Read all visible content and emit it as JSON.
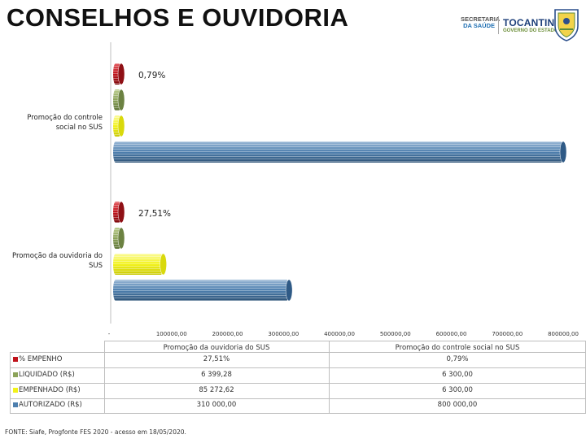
{
  "page": {
    "title": "CONSELHOS E OUVIDORIA",
    "source": "FONTE: Siafe, Progfonte FES 2020 - acesso em 18/05/2020."
  },
  "logos": {
    "secretaria_line1": "SECRETARIA",
    "secretaria_line2": "DA SAÚDE",
    "tocantins": "TOCANTINS",
    "governo": "GOVERNO DO ESTADO",
    "crest_icon": "state-crest-icon"
  },
  "colors": {
    "empenho": "#c0141c",
    "liquidado": "#8ca35a",
    "empenhado": "#f2f21a",
    "autorizado": "#4e7fae"
  },
  "chart_data": {
    "type": "bar",
    "orientation": "horizontal",
    "categories": [
      "Promoção do controle social no SUS",
      "Promoção da ouvidoria do SUS"
    ],
    "series": [
      {
        "name": "% EMPENHO",
        "values": [
          0.79,
          27.51
        ],
        "labels": [
          "0,79%",
          "27,51%"
        ]
      },
      {
        "name": "LIQUIDADO (R$)",
        "values": [
          6300.0,
          6399.28
        ],
        "labels": [
          "6 300,00",
          "6 399,28"
        ]
      },
      {
        "name": "EMPENHADO (R$)",
        "values": [
          6300.0,
          85272.62
        ],
        "labels": [
          "6 300,00",
          "85 272,62"
        ]
      },
      {
        "name": "AUTORIZADO (R$)",
        "values": [
          800000.0,
          310000.0
        ],
        "labels": [
          "800 000,00",
          "310 000,00"
        ]
      }
    ],
    "xlim": [
      0,
      800000
    ],
    "x_ticks": [
      0,
      100000,
      200000,
      300000,
      400000,
      500000,
      600000,
      700000,
      800000
    ],
    "x_tick_labels": [
      "-",
      "100000,00",
      "200000,00",
      "300000,00",
      "400000,00",
      "500000,00",
      "600000,00",
      "700000,00",
      "800000,00"
    ],
    "category_labels": {
      "controle_line1": "Promoção do controle",
      "controle_line2": "social no SUS",
      "ouvidoria_line1": "Promoção da ouvidoria do",
      "ouvidoria_line2": "SUS"
    },
    "table": {
      "col_headers": [
        "Promoção da ouvidoria do SUS",
        "Promoção do controle social no SUS"
      ],
      "rows": [
        {
          "label": "% EMPENHO",
          "values": [
            "27,51%",
            "0,79%"
          ]
        },
        {
          "label": "LIQUIDADO (R$)",
          "values": [
            "6 399,28",
            "6 300,00"
          ]
        },
        {
          "label": "EMPENHADO (R$)",
          "values": [
            "85 272,62",
            "6 300,00"
          ]
        },
        {
          "label": "AUTORIZADO (R$)",
          "values": [
            "310 000,00",
            "800 000,00"
          ]
        }
      ]
    },
    "legend": "in-table",
    "grid": false
  }
}
